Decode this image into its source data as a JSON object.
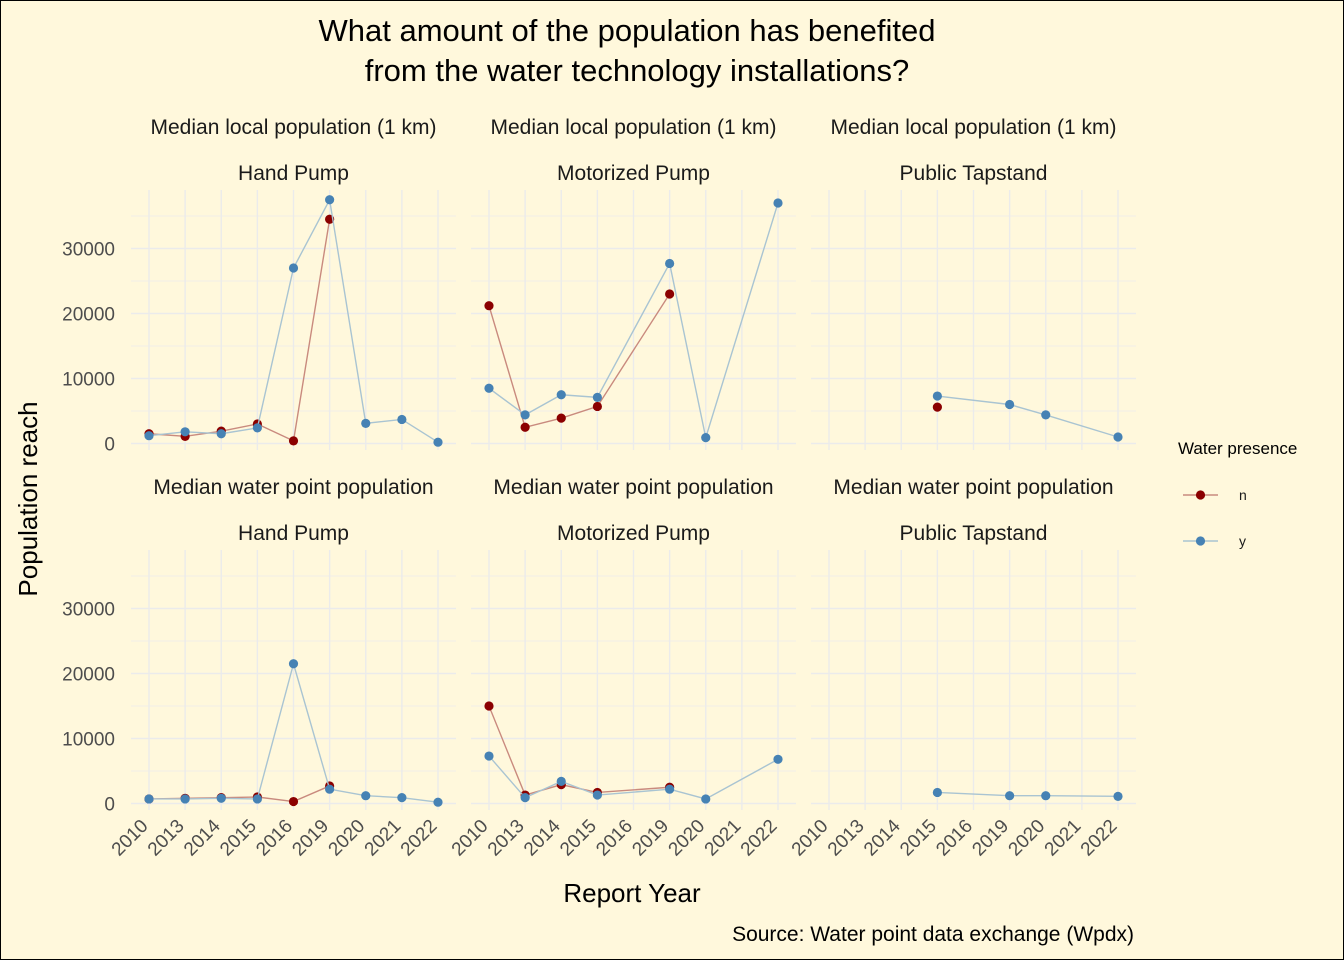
{
  "chart_data": {
    "type": "line",
    "title_lines": [
      "What amount of the population has benefited",
      "from the water technology installations?"
    ],
    "xlabel": "Report Year",
    "ylabel": "Population reach",
    "caption": "Source: Water point data exchange (Wpdx)",
    "legend": {
      "title": "Water presence",
      "position": "right",
      "entries": [
        {
          "key": "n",
          "label": "n",
          "point_color": "#8b0000",
          "line_color": "#c98a7e"
        },
        {
          "key": "y",
          "label": "y",
          "point_color": "#4682b4",
          "line_color": "#a9c4d2"
        }
      ]
    },
    "x_categories": [
      "2010",
      "2013",
      "2014",
      "2015",
      "2016",
      "2019",
      "2020",
      "2021",
      "2022"
    ],
    "y_ticks": [
      0,
      10000,
      20000,
      30000
    ],
    "y_tick_labels": [
      "0",
      "10000",
      "20000",
      "30000"
    ],
    "ylim": [
      -1000,
      39000
    ],
    "grid": true,
    "panels": [
      {
        "metric": "Median local population (1 km)",
        "technology": "Hand Pump",
        "series": {
          "n": [
            [
              1,
              1500
            ],
            [
              2,
              1100
            ],
            [
              3,
              1900
            ],
            [
              4,
              3000
            ],
            [
              5,
              400
            ],
            [
              6,
              34500
            ]
          ],
          "y": [
            [
              1,
              1200
            ],
            [
              2,
              1800
            ],
            [
              3,
              1500
            ],
            [
              4,
              2400
            ],
            [
              5,
              27000
            ],
            [
              6,
              37500
            ],
            [
              7,
              3100
            ],
            [
              8,
              3700
            ],
            [
              9,
              200
            ]
          ]
        }
      },
      {
        "metric": "Median local population (1 km)",
        "technology": "Motorized Pump",
        "series": {
          "n": [
            [
              1,
              21200
            ],
            [
              2,
              2500
            ],
            [
              3,
              3900
            ],
            [
              4,
              5700
            ],
            [
              6,
              23000
            ]
          ],
          "y": [
            [
              1,
              8500
            ],
            [
              2,
              4400
            ],
            [
              3,
              7500
            ],
            [
              4,
              7100
            ],
            [
              6,
              27700
            ],
            [
              7,
              900
            ],
            [
              9,
              37000
            ]
          ]
        }
      },
      {
        "metric": "Median local population (1 km)",
        "technology": "Public Tapstand",
        "series": {
          "n": [
            [
              4,
              5600
            ]
          ],
          "y": [
            [
              4,
              7300
            ],
            [
              6,
              6000
            ],
            [
              7,
              4400
            ],
            [
              9,
              1000
            ]
          ]
        }
      },
      {
        "metric": "Median water point population",
        "technology": "Hand Pump",
        "series": {
          "n": [
            [
              1,
              700
            ],
            [
              2,
              800
            ],
            [
              3,
              900
            ],
            [
              4,
              1000
            ],
            [
              5,
              300
            ],
            [
              6,
              2700
            ]
          ],
          "y": [
            [
              1,
              700
            ],
            [
              2,
              700
            ],
            [
              3,
              800
            ],
            [
              4,
              700
            ],
            [
              5,
              21500
            ],
            [
              6,
              2200
            ],
            [
              7,
              1200
            ],
            [
              8,
              900
            ],
            [
              9,
              200
            ]
          ]
        }
      },
      {
        "metric": "Median water point population",
        "technology": "Motorized Pump",
        "series": {
          "n": [
            [
              1,
              15000
            ],
            [
              2,
              1300
            ],
            [
              3,
              2900
            ],
            [
              4,
              1700
            ],
            [
              6,
              2500
            ]
          ],
          "y": [
            [
              1,
              7300
            ],
            [
              2,
              900
            ],
            [
              3,
              3400
            ],
            [
              4,
              1300
            ],
            [
              6,
              2200
            ],
            [
              7,
              700
            ],
            [
              9,
              6800
            ]
          ]
        }
      },
      {
        "metric": "Median water point population",
        "technology": "Public Tapstand",
        "series": {
          "n": [],
          "y": [
            [
              4,
              1700
            ],
            [
              6,
              1200
            ],
            [
              7,
              1200
            ],
            [
              9,
              1100
            ]
          ]
        }
      }
    ]
  }
}
